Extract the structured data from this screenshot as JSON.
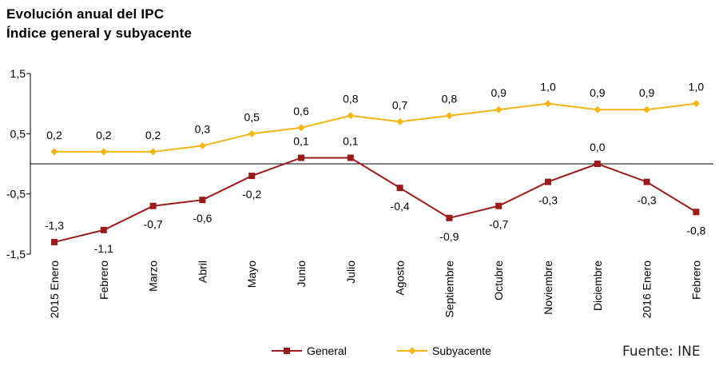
{
  "colors": {
    "general": "#9B1B1B",
    "subyacente": "#F5B512",
    "axis": "#000000",
    "text": "#000000"
  },
  "chart_data": {
    "type": "line",
    "title": "Evolución anual del IPC",
    "subtitle": "Índice general y subyacente",
    "source": "Fuente: INE",
    "categories": [
      "2015 Enero",
      "Febrero",
      "Marzo",
      "Abril",
      "Mayo",
      "Junio",
      "Julio",
      "Agosto",
      "Septiembre",
      "Octubre",
      "Noviembre",
      "Diciembre",
      "2016 Enero",
      "Febrero"
    ],
    "y_ticks": [
      "1,5",
      "0,5",
      "-0,5",
      "-1,5"
    ],
    "y_tick_values": [
      1.5,
      0.5,
      -0.5,
      -1.5
    ],
    "ylim": [
      -1.5,
      1.5
    ],
    "grid": false,
    "legend_position": "bottom",
    "series": [
      {
        "name": "General",
        "values": [
          -1.3,
          -1.1,
          -0.7,
          -0.6,
          -0.2,
          0.1,
          0.1,
          -0.4,
          -0.9,
          -0.7,
          -0.3,
          0.0,
          -0.3,
          -0.8
        ],
        "labels": [
          "-1,3",
          "-1,1",
          "-0,7",
          "-0,6",
          "-0,2",
          "0,1",
          "0,1",
          "-0,4",
          "-0,9",
          "-0,7",
          "-0,3",
          "0,0",
          "-0,3",
          "-0,8"
        ],
        "label_pos": [
          "above",
          "below",
          "below",
          "below",
          "below",
          "above",
          "above",
          "below",
          "below",
          "below",
          "below",
          "above",
          "below",
          "below"
        ]
      },
      {
        "name": "Subyacente",
        "values": [
          0.2,
          0.2,
          0.2,
          0.3,
          0.5,
          0.6,
          0.8,
          0.7,
          0.8,
          0.9,
          1.0,
          0.9,
          0.9,
          1.0
        ],
        "labels": [
          "0,2",
          "0,2",
          "0,2",
          "0,3",
          "0,5",
          "0,6",
          "0,8",
          "0,7",
          "0,8",
          "0,9",
          "1,0",
          "0,9",
          "0,9",
          "1,0"
        ],
        "label_pos": [
          "above",
          "above",
          "above",
          "above",
          "above",
          "above",
          "above",
          "above",
          "above",
          "above",
          "above",
          "above",
          "above",
          "above"
        ]
      }
    ]
  }
}
